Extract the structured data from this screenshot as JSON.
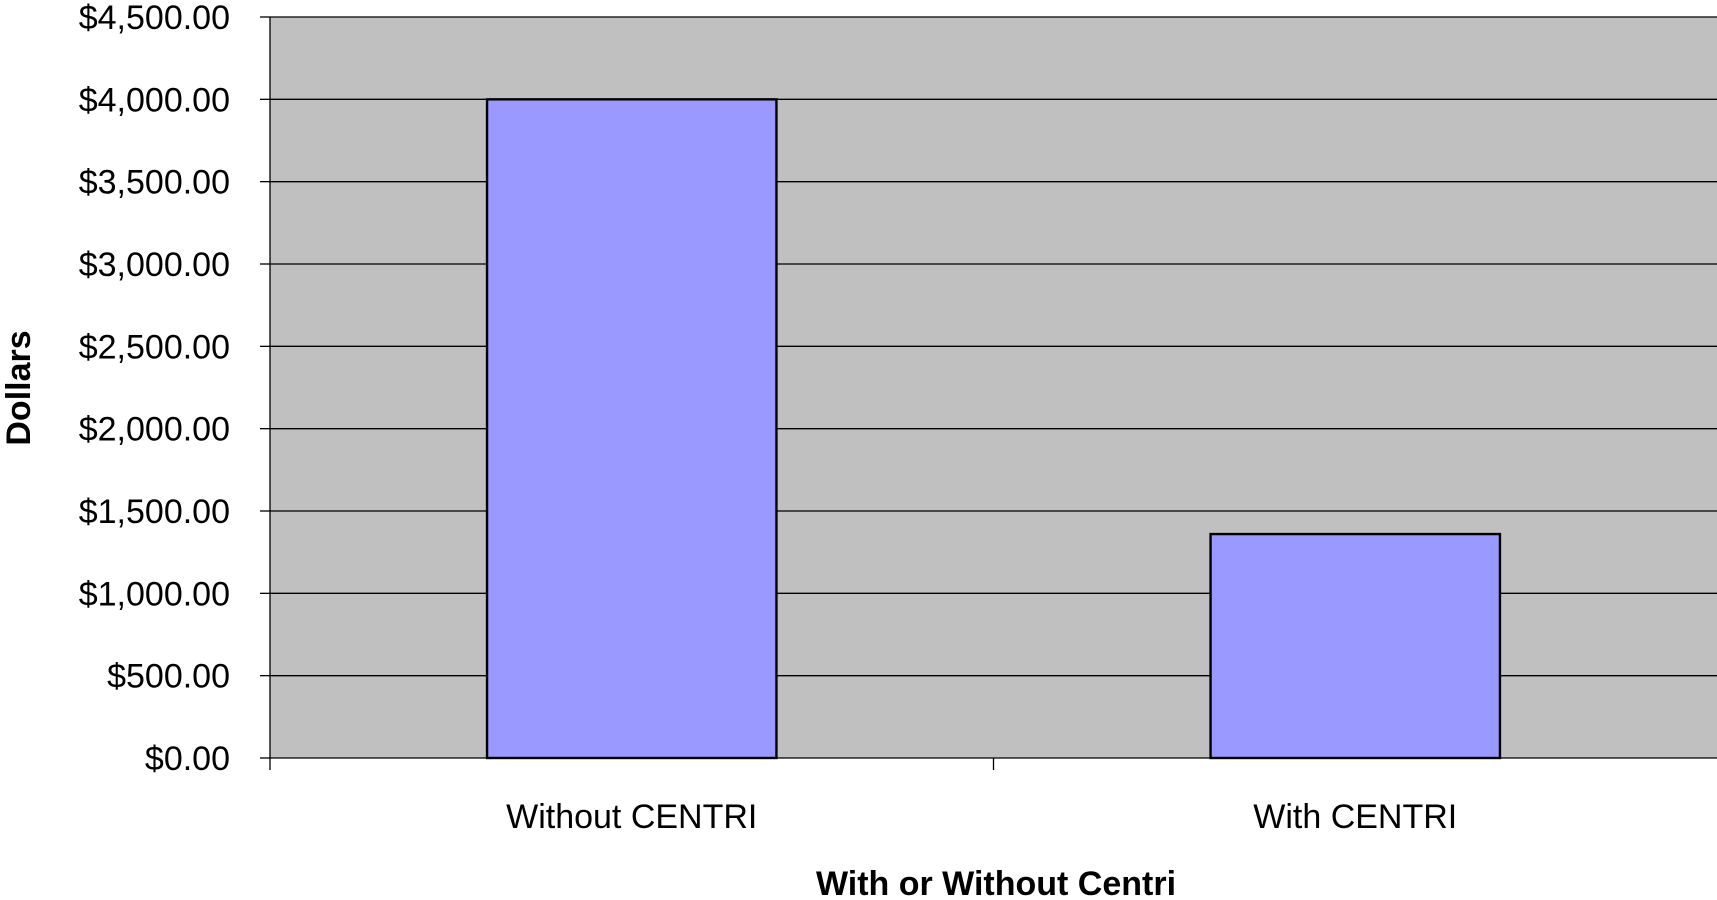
{
  "chart_data": {
    "type": "bar",
    "categories": [
      "Without CENTRI",
      "With CENTRI"
    ],
    "values": [
      4000,
      1360
    ],
    "xlabel": "With or Without Centri",
    "ylabel": "Dollars",
    "ylim": [
      0,
      4500
    ],
    "ytick_values": [
      0,
      500,
      1000,
      1500,
      2000,
      2500,
      3000,
      3500,
      4000,
      4500
    ],
    "ytick_labels": [
      "$0.00",
      "$500.00",
      "$1,000.00",
      "$1,500.00",
      "$2,000.00",
      "$2,500.00",
      "$3,000.00",
      "$3,500.00",
      "$4,000.00",
      "$4,500.00"
    ],
    "grid": true,
    "legend": "none",
    "colors": {
      "plot_background": "#c0c0c0",
      "bar_fill": "#9999ff",
      "bar_stroke": "#000000",
      "gridline": "#000000"
    }
  }
}
